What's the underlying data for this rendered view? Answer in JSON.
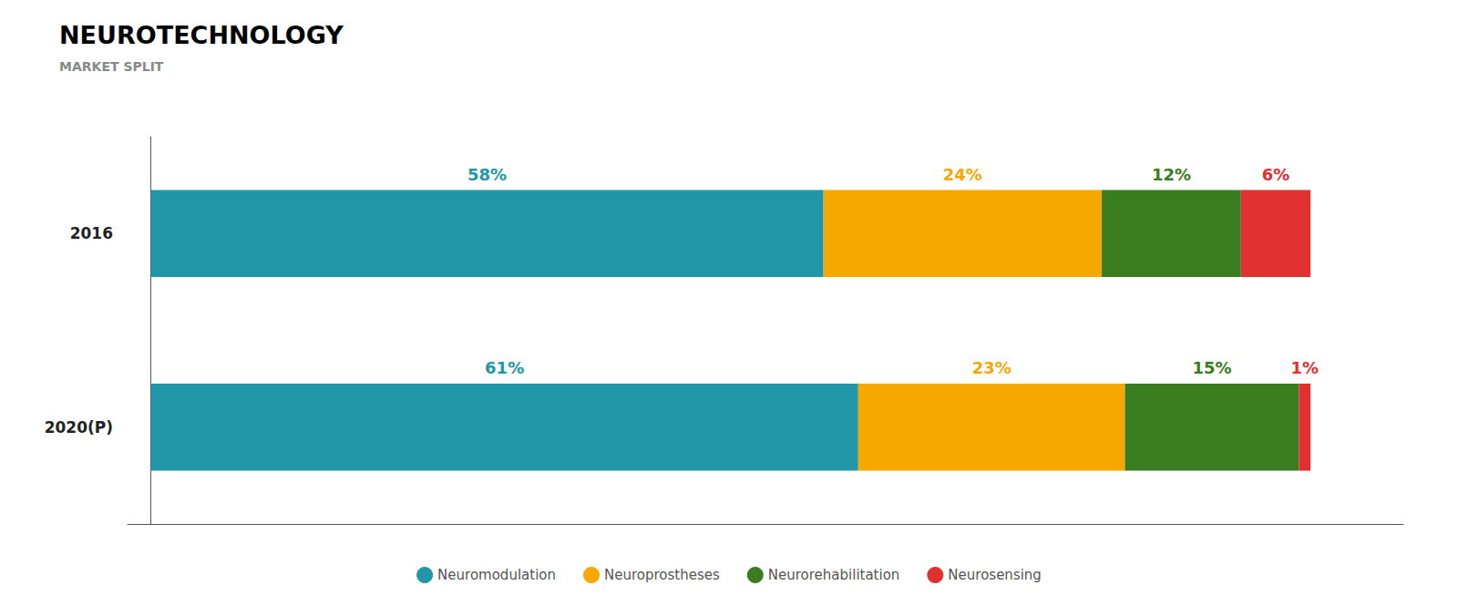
{
  "chart_data": {
    "type": "bar",
    "orientation": "horizontal",
    "stacked": true,
    "title": "NEUROTECHNOLOGY",
    "subtitle": "MARKET SPLIT",
    "categories": [
      "2016",
      "2020(P)"
    ],
    "series": [
      {
        "name": "Neuromodulation",
        "color": "#2196A6",
        "values": [
          58,
          61
        ],
        "value_labels": [
          "58%",
          "61%"
        ]
      },
      {
        "name": "Neuroprostheses",
        "color": "#F5A800",
        "values": [
          24,
          23
        ],
        "value_labels": [
          "24%",
          "23%"
        ]
      },
      {
        "name": "Neurorehabilitation",
        "color": "#3A7D21",
        "values": [
          12,
          15
        ],
        "value_labels": [
          "12%",
          "15%"
        ]
      },
      {
        "name": "Neurosensing",
        "color": "#E03030",
        "values": [
          6,
          1
        ],
        "value_labels": [
          "6%",
          "1%"
        ]
      }
    ],
    "xlim": [
      -2,
      108
    ],
    "data_labels": true,
    "tick_labels": "y",
    "grid": false,
    "legend": "bottom"
  }
}
